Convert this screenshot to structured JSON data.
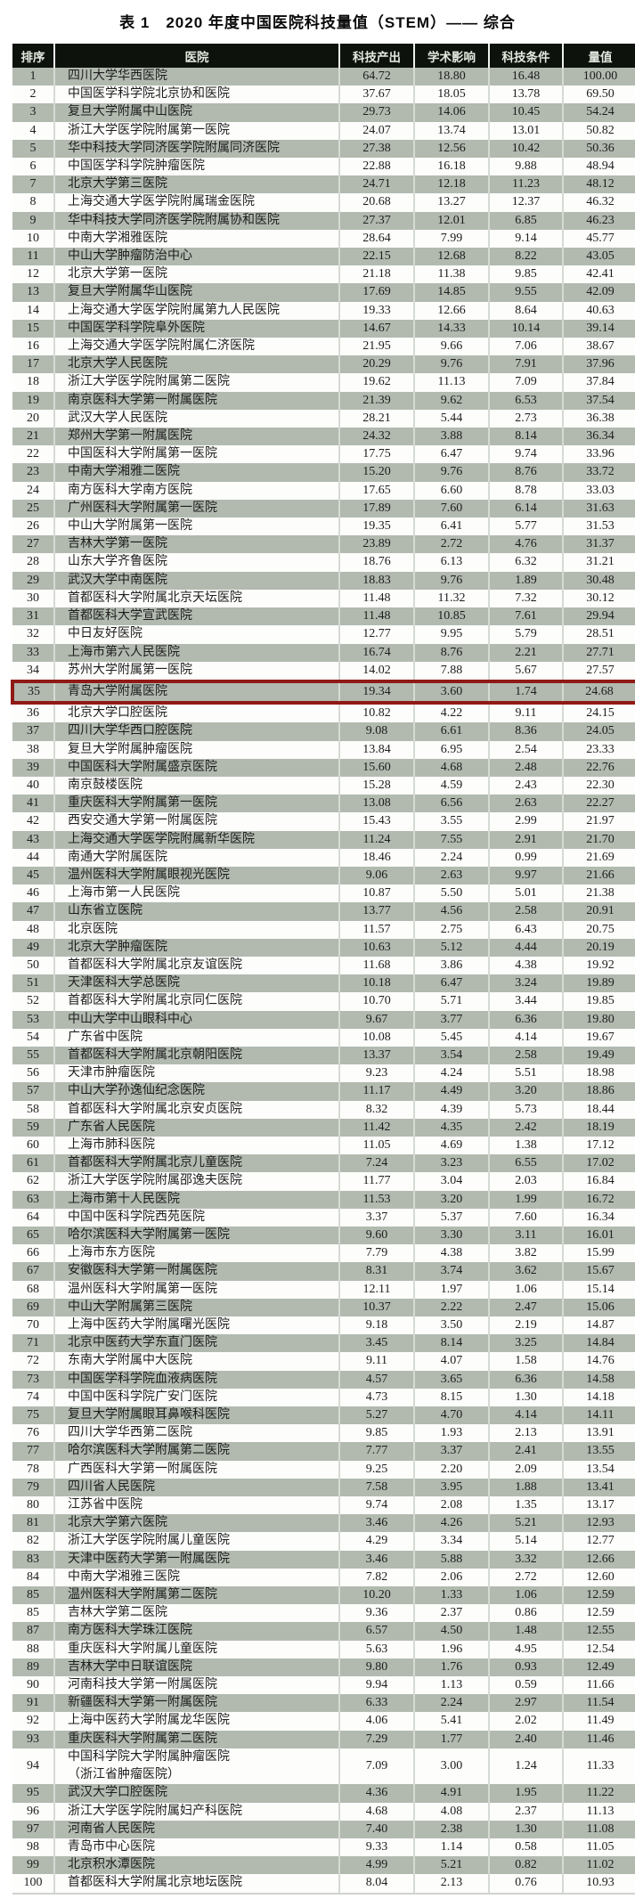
{
  "title": "表 1　2020 年度中国医院科技量值（STEM）—— 综合",
  "colors": {
    "header_bg": "#0e120d",
    "header_text": "#e2eadf",
    "shaded_row_bg": "#b2bab0",
    "plain_row_bg": "#fdfdfc",
    "highlight_border": "#8f1a16"
  },
  "table": {
    "columns": [
      "排序",
      "医院",
      "科技产出",
      "学术影响",
      "科技条件",
      "量值"
    ],
    "highlight_row_index": 34,
    "highlighted_hospital": "青岛大学附属医院",
    "rows": [
      [
        "1",
        "四川大学华西医院",
        "64.72",
        "18.80",
        "16.48",
        "100.00"
      ],
      [
        "2",
        "中国医学科学院北京协和医院",
        "37.67",
        "18.05",
        "13.78",
        "69.50"
      ],
      [
        "3",
        "复旦大学附属中山医院",
        "29.73",
        "14.06",
        "10.45",
        "54.24"
      ],
      [
        "4",
        "浙江大学医学院附属第一医院",
        "24.07",
        "13.74",
        "13.01",
        "50.82"
      ],
      [
        "5",
        "华中科技大学同济医学院附属同济医院",
        "27.38",
        "12.56",
        "10.42",
        "50.36"
      ],
      [
        "6",
        "中国医学科学院肿瘤医院",
        "22.88",
        "16.18",
        "9.88",
        "48.94"
      ],
      [
        "7",
        "北京大学第三医院",
        "24.71",
        "12.18",
        "11.23",
        "48.12"
      ],
      [
        "8",
        "上海交通大学医学院附属瑞金医院",
        "20.68",
        "13.27",
        "12.37",
        "46.32"
      ],
      [
        "9",
        "华中科技大学同济医学院附属协和医院",
        "27.37",
        "12.01",
        "6.85",
        "46.23"
      ],
      [
        "10",
        "中南大学湘雅医院",
        "28.64",
        "7.99",
        "9.14",
        "45.77"
      ],
      [
        "11",
        "中山大学肿瘤防治中心",
        "22.15",
        "12.68",
        "8.22",
        "43.05"
      ],
      [
        "12",
        "北京大学第一医院",
        "21.18",
        "11.38",
        "9.85",
        "42.41"
      ],
      [
        "13",
        "复旦大学附属华山医院",
        "17.69",
        "14.85",
        "9.55",
        "42.09"
      ],
      [
        "14",
        "上海交通大学医学院附属第九人民医院",
        "19.33",
        "12.66",
        "8.64",
        "40.63"
      ],
      [
        "15",
        "中国医学科学院阜外医院",
        "14.67",
        "14.33",
        "10.14",
        "39.14"
      ],
      [
        "16",
        "上海交通大学医学院附属仁济医院",
        "21.95",
        "9.66",
        "7.06",
        "38.67"
      ],
      [
        "17",
        "北京大学人民医院",
        "20.29",
        "9.76",
        "7.91",
        "37.96"
      ],
      [
        "18",
        "浙江大学医学院附属第二医院",
        "19.62",
        "11.13",
        "7.09",
        "37.84"
      ],
      [
        "19",
        "南京医科大学第一附属医院",
        "21.39",
        "9.62",
        "6.53",
        "37.54"
      ],
      [
        "20",
        "武汉大学人民医院",
        "28.21",
        "5.44",
        "2.73",
        "36.38"
      ],
      [
        "21",
        "郑州大学第一附属医院",
        "24.32",
        "3.88",
        "8.14",
        "36.34"
      ],
      [
        "22",
        "中国医科大学附属第一医院",
        "17.75",
        "6.47",
        "9.74",
        "33.96"
      ],
      [
        "23",
        "中南大学湘雅二医院",
        "15.20",
        "9.76",
        "8.76",
        "33.72"
      ],
      [
        "24",
        "南方医科大学南方医院",
        "17.65",
        "6.60",
        "8.78",
        "33.03"
      ],
      [
        "25",
        "广州医科大学附属第一医院",
        "17.89",
        "7.60",
        "6.14",
        "31.63"
      ],
      [
        "26",
        "中山大学附属第一医院",
        "19.35",
        "6.41",
        "5.77",
        "31.53"
      ],
      [
        "27",
        "吉林大学第一医院",
        "23.89",
        "2.72",
        "4.76",
        "31.37"
      ],
      [
        "28",
        "山东大学齐鲁医院",
        "18.76",
        "6.13",
        "6.32",
        "31.21"
      ],
      [
        "29",
        "武汉大学中南医院",
        "18.83",
        "9.76",
        "1.89",
        "30.48"
      ],
      [
        "30",
        "首都医科大学附属北京天坛医院",
        "11.48",
        "11.32",
        "7.32",
        "30.12"
      ],
      [
        "31",
        "首都医科大学宣武医院",
        "11.48",
        "10.85",
        "7.61",
        "29.94"
      ],
      [
        "32",
        "中日友好医院",
        "12.77",
        "9.95",
        "5.79",
        "28.51"
      ],
      [
        "33",
        "上海市第六人民医院",
        "16.74",
        "8.76",
        "2.21",
        "27.71"
      ],
      [
        "34",
        "苏州大学附属第一医院",
        "14.02",
        "7.88",
        "5.67",
        "27.57"
      ],
      [
        "35",
        "青岛大学附属医院",
        "19.34",
        "3.60",
        "1.74",
        "24.68"
      ],
      [
        "36",
        "北京大学口腔医院",
        "10.82",
        "4.22",
        "9.11",
        "24.15"
      ],
      [
        "37",
        "四川大学华西口腔医院",
        "9.08",
        "6.61",
        "8.36",
        "24.05"
      ],
      [
        "38",
        "复旦大学附属肿瘤医院",
        "13.84",
        "6.95",
        "2.54",
        "23.33"
      ],
      [
        "39",
        "中国医科大学附属盛京医院",
        "15.60",
        "4.68",
        "2.48",
        "22.76"
      ],
      [
        "40",
        "南京鼓楼医院",
        "15.28",
        "4.59",
        "2.43",
        "22.30"
      ],
      [
        "41",
        "重庆医科大学附属第一医院",
        "13.08",
        "6.56",
        "2.63",
        "22.27"
      ],
      [
        "42",
        "西安交通大学第一附属医院",
        "15.43",
        "3.55",
        "2.99",
        "21.97"
      ],
      [
        "43",
        "上海交通大学医学院附属新华医院",
        "11.24",
        "7.55",
        "2.91",
        "21.70"
      ],
      [
        "44",
        "南通大学附属医院",
        "18.46",
        "2.24",
        "0.99",
        "21.69"
      ],
      [
        "45",
        "温州医科大学附属眼视光医院",
        "9.06",
        "2.63",
        "9.97",
        "21.66"
      ],
      [
        "46",
        "上海市第一人民医院",
        "10.87",
        "5.50",
        "5.01",
        "21.38"
      ],
      [
        "47",
        "山东省立医院",
        "13.77",
        "4.56",
        "2.58",
        "20.91"
      ],
      [
        "48",
        "北京医院",
        "11.57",
        "2.75",
        "6.43",
        "20.75"
      ],
      [
        "49",
        "北京大学肿瘤医院",
        "10.63",
        "5.12",
        "4.44",
        "20.19"
      ],
      [
        "50",
        "首都医科大学附属北京友谊医院",
        "11.68",
        "3.86",
        "4.38",
        "19.92"
      ],
      [
        "51",
        "天津医科大学总医院",
        "10.18",
        "6.47",
        "3.24",
        "19.89"
      ],
      [
        "52",
        "首都医科大学附属北京同仁医院",
        "10.70",
        "5.71",
        "3.44",
        "19.85"
      ],
      [
        "53",
        "中山大学中山眼科中心",
        "9.67",
        "3.77",
        "6.36",
        "19.80"
      ],
      [
        "54",
        "广东省中医院",
        "10.08",
        "5.45",
        "4.14",
        "19.67"
      ],
      [
        "55",
        "首都医科大学附属北京朝阳医院",
        "13.37",
        "3.54",
        "2.58",
        "19.49"
      ],
      [
        "56",
        "天津市肿瘤医院",
        "9.23",
        "4.24",
        "5.51",
        "18.98"
      ],
      [
        "57",
        "中山大学孙逸仙纪念医院",
        "11.17",
        "4.49",
        "3.20",
        "18.86"
      ],
      [
        "58",
        "首都医科大学附属北京安贞医院",
        "8.32",
        "4.39",
        "5.73",
        "18.44"
      ],
      [
        "59",
        "广东省人民医院",
        "11.42",
        "4.35",
        "2.42",
        "18.19"
      ],
      [
        "60",
        "上海市肺科医院",
        "11.05",
        "4.69",
        "1.38",
        "17.12"
      ],
      [
        "61",
        "首都医科大学附属北京儿童医院",
        "7.24",
        "3.23",
        "6.55",
        "17.02"
      ],
      [
        "62",
        "浙江大学医学院附属邵逸夫医院",
        "11.77",
        "3.04",
        "2.03",
        "16.84"
      ],
      [
        "63",
        "上海市第十人民医院",
        "11.53",
        "3.20",
        "1.99",
        "16.72"
      ],
      [
        "64",
        "中国中医科学院西苑医院",
        "3.37",
        "5.37",
        "7.60",
        "16.34"
      ],
      [
        "65",
        "哈尔滨医科大学附属第一医院",
        "9.60",
        "3.30",
        "3.11",
        "16.01"
      ],
      [
        "66",
        "上海市东方医院",
        "7.79",
        "4.38",
        "3.82",
        "15.99"
      ],
      [
        "67",
        "安徽医科大学第一附属医院",
        "8.31",
        "3.74",
        "3.62",
        "15.67"
      ],
      [
        "68",
        "温州医科大学附属第一医院",
        "12.11",
        "1.97",
        "1.06",
        "15.14"
      ],
      [
        "69",
        "中山大学附属第三医院",
        "10.37",
        "2.22",
        "2.47",
        "15.06"
      ],
      [
        "70",
        "上海中医药大学附属曙光医院",
        "9.18",
        "3.50",
        "2.19",
        "14.87"
      ],
      [
        "71",
        "北京中医药大学东直门医院",
        "3.45",
        "8.14",
        "3.25",
        "14.84"
      ],
      [
        "72",
        "东南大学附属中大医院",
        "9.11",
        "4.07",
        "1.58",
        "14.76"
      ],
      [
        "73",
        "中国医学科学院血液病医院",
        "4.57",
        "3.65",
        "6.36",
        "14.58"
      ],
      [
        "74",
        "中国中医科学院广安门医院",
        "4.73",
        "8.15",
        "1.30",
        "14.18"
      ],
      [
        "75",
        "复旦大学附属眼耳鼻喉科医院",
        "5.27",
        "4.70",
        "4.14",
        "14.11"
      ],
      [
        "76",
        "四川大学华西第二医院",
        "9.85",
        "1.93",
        "2.13",
        "13.91"
      ],
      [
        "77",
        "哈尔滨医科大学附属第二医院",
        "7.77",
        "3.37",
        "2.41",
        "13.55"
      ],
      [
        "78",
        "广西医科大学第一附属医院",
        "9.25",
        "2.20",
        "2.09",
        "13.54"
      ],
      [
        "79",
        "四川省人民医院",
        "7.58",
        "3.95",
        "1.88",
        "13.41"
      ],
      [
        "80",
        "江苏省中医院",
        "9.74",
        "2.08",
        "1.35",
        "13.17"
      ],
      [
        "81",
        "北京大学第六医院",
        "3.46",
        "4.26",
        "5.21",
        "12.93"
      ],
      [
        "82",
        "浙江大学医学院附属儿童医院",
        "4.29",
        "3.34",
        "5.14",
        "12.77"
      ],
      [
        "83",
        "天津中医药大学第一附属医院",
        "3.46",
        "5.88",
        "3.32",
        "12.66"
      ],
      [
        "84",
        "中南大学湘雅三医院",
        "7.82",
        "2.06",
        "2.72",
        "12.60"
      ],
      [
        "85",
        "温州医科大学附属第二医院",
        "10.20",
        "1.33",
        "1.06",
        "12.59"
      ],
      [
        "85",
        "吉林大学第二医院",
        "9.36",
        "2.37",
        "0.86",
        "12.59"
      ],
      [
        "87",
        "南方医科大学珠江医院",
        "6.57",
        "4.50",
        "1.48",
        "12.55"
      ],
      [
        "88",
        "重庆医科大学附属儿童医院",
        "5.63",
        "1.96",
        "4.95",
        "12.54"
      ],
      [
        "89",
        "吉林大学中日联谊医院",
        "9.80",
        "1.76",
        "0.93",
        "12.49"
      ],
      [
        "90",
        "河南科技大学第一附属医院",
        "9.94",
        "1.13",
        "0.59",
        "11.66"
      ],
      [
        "91",
        "新疆医科大学第一附属医院",
        "6.33",
        "2.24",
        "2.97",
        "11.54"
      ],
      [
        "92",
        "上海中医药大学附属龙华医院",
        "4.06",
        "5.41",
        "2.02",
        "11.49"
      ],
      [
        "93",
        "重庆医科大学附属第二医院",
        "7.29",
        "1.77",
        "2.40",
        "11.46"
      ],
      [
        "94",
        "中国科学院大学附属肿瘤医院\n（浙江省肿瘤医院）",
        "7.09",
        "3.00",
        "1.24",
        "11.33"
      ],
      [
        "95",
        "武汉大学口腔医院",
        "4.36",
        "4.91",
        "1.95",
        "11.22"
      ],
      [
        "96",
        "浙江大学医学院附属妇产科医院",
        "4.68",
        "4.08",
        "2.37",
        "11.13"
      ],
      [
        "97",
        "河南省人民医院",
        "7.40",
        "2.38",
        "1.30",
        "11.08"
      ],
      [
        "98",
        "青岛市中心医院",
        "9.33",
        "1.14",
        "0.58",
        "11.05"
      ],
      [
        "99",
        "北京积水潭医院",
        "4.99",
        "5.21",
        "0.82",
        "11.02"
      ],
      [
        "100",
        "首都医科大学附属北京地坛医院",
        "8.04",
        "2.13",
        "0.76",
        "10.93"
      ]
    ]
  }
}
